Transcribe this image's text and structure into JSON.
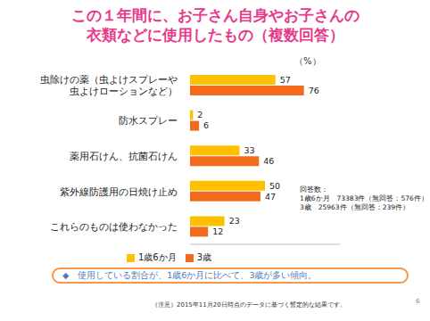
{
  "chart_data": {
    "type": "bar",
    "orientation": "horizontal",
    "title": "この１年間に、お子さん自身やお子さんの\n衣類などに使用したもの（複数回答）",
    "x_label": "（%）",
    "categories": [
      "虫除けの薬（虫よけスプレーや\n虫よけローションなど）",
      "防水スプレー",
      "薬用石けん、抗菌石けん",
      "紫外線防護用の日焼け止め",
      "これらのものは使わなかった"
    ],
    "series": [
      {
        "name": "1歳6か月",
        "color": "#FFC000",
        "values": [
          57,
          2,
          33,
          50,
          23
        ]
      },
      {
        "name": "3歳",
        "color": "#F26B1D",
        "values": [
          76,
          6,
          46,
          47,
          12
        ]
      }
    ],
    "xlim": [
      0,
      100
    ],
    "data_labels": true,
    "tick_labels": "y",
    "legend": "bottom",
    "grid": false,
    "annotations": {
      "respondents": [
        "回答数：",
        "1歳6か月　73383件（無回答：576件）",
        "3歳　25963件（無回答：239件）"
      ],
      "note": "◆　使用している割合が、1歳6か月に比べて、3歳が多い傾向。",
      "footnote": "（注意）2015年11月20日時点のデータに基づく暫定的な結果です。",
      "page": "6"
    }
  }
}
